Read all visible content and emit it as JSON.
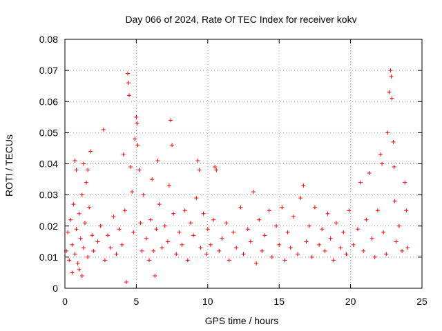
{
  "chart_data": {
    "type": "scatter",
    "title": "Day 066 of 2024, Rate Of TEC Index for receiver kokv",
    "xlabel": "GPS time / hours",
    "ylabel": "ROTI / TECUs",
    "xlim": [
      0,
      25
    ],
    "ylim": [
      0,
      0.08
    ],
    "x_ticks": [
      0,
      5,
      10,
      15,
      20,
      25
    ],
    "x_tick_labels": [
      "0",
      "5",
      "10",
      "15",
      "20",
      "25"
    ],
    "y_ticks": [
      0,
      0.01,
      0.02,
      0.03,
      0.04,
      0.05,
      0.06,
      0.07,
      0.08
    ],
    "y_tick_labels": [
      "0",
      "0.01",
      "0.02",
      "0.03",
      "0.04",
      "0.05",
      "0.06",
      "0.07",
      "0.08"
    ],
    "grid": true,
    "marker": "+",
    "color": "#ff0000",
    "series": [
      {
        "name": "ROTI",
        "points": [
          [
            0.1,
            0.012
          ],
          [
            0.2,
            0.018
          ],
          [
            0.3,
            0.009
          ],
          [
            0.4,
            0.022
          ],
          [
            0.5,
            0.014
          ],
          [
            0.6,
            0.027
          ],
          [
            0.7,
            0.011
          ],
          [
            0.8,
            0.019
          ],
          [
            0.9,
            0.008
          ],
          [
            1.0,
            0.024
          ],
          [
            1.1,
            0.016
          ],
          [
            1.2,
            0.03
          ],
          [
            1.3,
            0.013
          ],
          [
            1.4,
            0.021
          ],
          [
            1.5,
            0.034
          ],
          [
            1.6,
            0.01
          ],
          [
            1.7,
            0.026
          ],
          [
            1.8,
            0.044
          ],
          [
            1.9,
            0.017
          ],
          [
            2.0,
            0.012
          ],
          [
            0.7,
            0.041
          ],
          [
            0.8,
            0.038
          ],
          [
            1.3,
            0.04
          ],
          [
            1.6,
            0.038
          ],
          [
            0.5,
            0.005
          ],
          [
            1.0,
            0.006
          ],
          [
            1.2,
            0.004
          ],
          [
            2.3,
            0.015
          ],
          [
            2.5,
            0.02
          ],
          [
            2.7,
            0.051
          ],
          [
            2.8,
            0.009
          ],
          [
            3.0,
            0.017
          ],
          [
            3.2,
            0.013
          ],
          [
            3.4,
            0.023
          ],
          [
            3.6,
            0.011
          ],
          [
            3.8,
            0.019
          ],
          [
            4.0,
            0.014
          ],
          [
            4.1,
            0.043
          ],
          [
            4.2,
            0.025
          ],
          [
            4.3,
            0.002
          ],
          [
            4.4,
            0.069
          ],
          [
            4.45,
            0.066
          ],
          [
            4.5,
            0.062
          ],
          [
            4.6,
            0.039
          ],
          [
            4.7,
            0.031
          ],
          [
            4.8,
            0.018
          ],
          [
            4.9,
            0.048
          ],
          [
            5.0,
            0.055
          ],
          [
            5.05,
            0.053
          ],
          [
            5.1,
            0.046
          ],
          [
            5.2,
            0.038
          ],
          [
            5.3,
            0.021
          ],
          [
            5.4,
            0.012
          ],
          [
            5.5,
            0.03
          ],
          [
            5.7,
            0.016
          ],
          [
            5.9,
            0.009
          ],
          [
            6.0,
            0.022
          ],
          [
            6.1,
            0.035
          ],
          [
            6.2,
            0.012
          ],
          [
            6.3,
            0.004
          ],
          [
            6.4,
            0.019
          ],
          [
            6.5,
            0.041
          ],
          [
            6.6,
            0.027
          ],
          [
            6.8,
            0.013
          ],
          [
            7.0,
            0.02
          ],
          [
            7.2,
            0.015
          ],
          [
            7.3,
            0.033
          ],
          [
            7.4,
            0.054
          ],
          [
            7.5,
            0.046
          ],
          [
            7.6,
            0.024
          ],
          [
            7.8,
            0.011
          ],
          [
            8.0,
            0.018
          ],
          [
            8.2,
            0.014
          ],
          [
            8.4,
            0.025
          ],
          [
            8.6,
            0.009
          ],
          [
            8.8,
            0.021
          ],
          [
            9.0,
            0.017
          ],
          [
            9.2,
            0.029
          ],
          [
            9.3,
            0.041
          ],
          [
            9.4,
            0.038
          ],
          [
            9.5,
            0.013
          ],
          [
            9.7,
            0.024
          ],
          [
            9.9,
            0.011
          ],
          [
            10.0,
            0.019
          ],
          [
            10.2,
            0.014
          ],
          [
            10.4,
            0.022
          ],
          [
            10.5,
            0.039
          ],
          [
            10.6,
            0.038
          ],
          [
            10.8,
            0.012
          ],
          [
            11.0,
            0.016
          ],
          [
            11.3,
            0.021
          ],
          [
            11.5,
            0.009
          ],
          [
            11.8,
            0.018
          ],
          [
            12.0,
            0.013
          ],
          [
            12.3,
            0.026
          ],
          [
            12.5,
            0.011
          ],
          [
            12.8,
            0.019
          ],
          [
            13.0,
            0.015
          ],
          [
            13.2,
            0.031
          ],
          [
            13.4,
            0.008
          ],
          [
            13.6,
            0.022
          ],
          [
            13.8,
            0.012
          ],
          [
            14.0,
            0.017
          ],
          [
            14.3,
            0.025
          ],
          [
            14.5,
            0.01
          ],
          [
            14.8,
            0.02
          ],
          [
            15.0,
            0.014
          ],
          [
            15.2,
            0.026
          ],
          [
            15.4,
            0.009
          ],
          [
            15.6,
            0.018
          ],
          [
            15.8,
            0.013
          ],
          [
            16.0,
            0.023
          ],
          [
            16.3,
            0.011
          ],
          [
            16.5,
            0.029
          ],
          [
            16.7,
            0.033
          ],
          [
            16.9,
            0.015
          ],
          [
            17.1,
            0.02
          ],
          [
            17.3,
            0.01
          ],
          [
            17.5,
            0.026
          ],
          [
            17.8,
            0.014
          ],
          [
            18.0,
            0.019
          ],
          [
            18.2,
            0.012
          ],
          [
            18.4,
            0.024
          ],
          [
            18.6,
            0.016
          ],
          [
            18.8,
            0.009
          ],
          [
            19.0,
            0.021
          ],
          [
            19.3,
            0.013
          ],
          [
            19.5,
            0.018
          ],
          [
            19.7,
            0.011
          ],
          [
            19.9,
            0.025
          ],
          [
            20.2,
            0.014
          ],
          [
            20.5,
            0.019
          ],
          [
            20.7,
            0.034
          ],
          [
            20.9,
            0.012
          ],
          [
            21.1,
            0.022
          ],
          [
            21.3,
            0.037
          ],
          [
            21.5,
            0.016
          ],
          [
            21.7,
            0.01
          ],
          [
            21.9,
            0.025
          ],
          [
            22.1,
            0.043
          ],
          [
            22.2,
            0.04
          ],
          [
            22.3,
            0.018
          ],
          [
            22.5,
            0.011
          ],
          [
            22.6,
            0.05
          ],
          [
            22.7,
            0.063
          ],
          [
            22.8,
            0.07
          ],
          [
            22.85,
            0.068
          ],
          [
            22.9,
            0.061
          ],
          [
            23.0,
            0.047
          ],
          [
            23.05,
            0.039
          ],
          [
            23.1,
            0.028
          ],
          [
            23.2,
            0.015
          ],
          [
            23.4,
            0.02
          ],
          [
            23.6,
            0.012
          ],
          [
            23.8,
            0.034
          ],
          [
            23.9,
            0.025
          ],
          [
            24.0,
            0.013
          ]
        ]
      }
    ]
  }
}
